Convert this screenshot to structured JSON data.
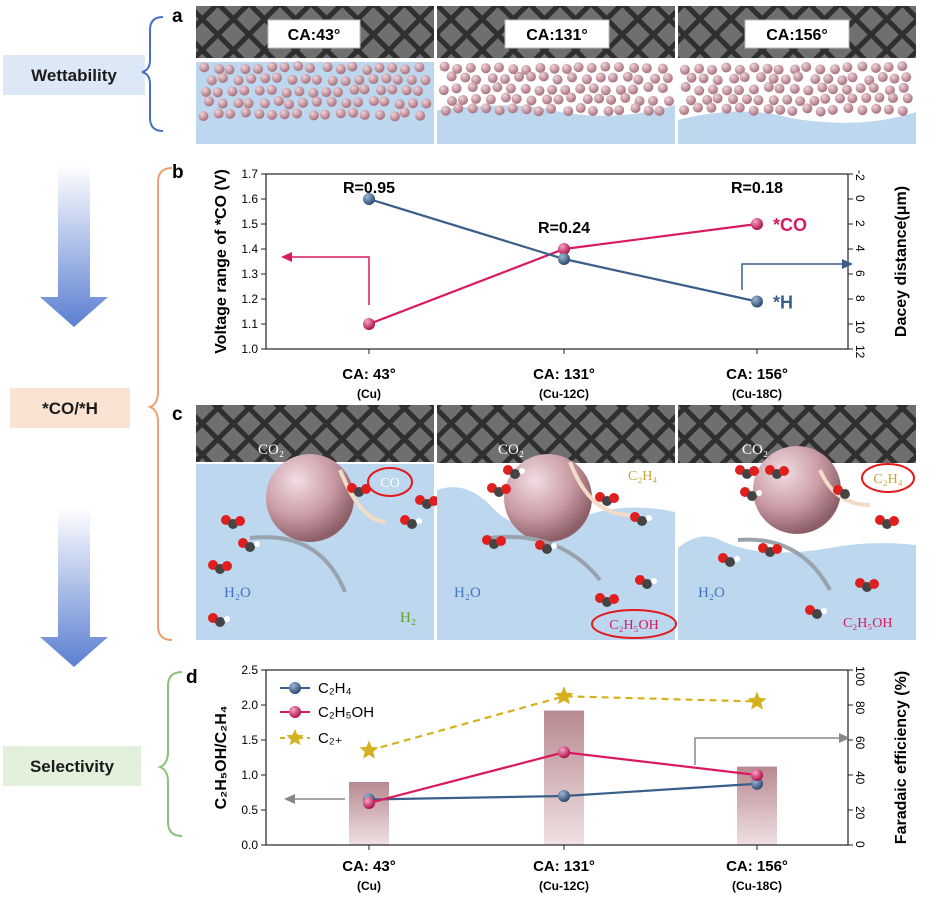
{
  "colors": {
    "wettability_bg": "#dce8f6",
    "co_bg": "#fbe3d4",
    "selectivity_bg": "#e3f0dc",
    "blue_series": "#3b5f8a",
    "red_series": "#d81b60",
    "gold": "#d4b21f",
    "water": "#bcd7ee",
    "particle": "#c99aa4",
    "bar": "#c7a1a6"
  },
  "left_column": {
    "wettability": "Wettability",
    "co_h": "*CO/*H",
    "selectivity": "Selectivity"
  },
  "panel_letters": {
    "a": "a",
    "b": "b",
    "c": "c",
    "d": "d"
  },
  "panel_a": {
    "cells": [
      {
        "label": "CA:43°"
      },
      {
        "label": "CA:131°"
      },
      {
        "label": "CA:156°"
      }
    ]
  },
  "panel_c": {
    "cells": [
      {
        "co2": "CO₂",
        "product_top": "CO",
        "water_label": "H₂O",
        "product_bottom": "H₂"
      },
      {
        "co2": "CO₂",
        "product_top": "C₂H₄",
        "water_label": "H₂O",
        "product_bottom": "C₂H₅OH"
      },
      {
        "co2": "CO₂",
        "product_top": "C₂H₄",
        "water_label": "H₂O",
        "product_bottom": "C₂H₅OH"
      }
    ]
  },
  "chart_data": [
    {
      "type": "line",
      "panel": "b",
      "categories": [
        "CA: 43°",
        "CA: 131°",
        "CA: 156°"
      ],
      "category_sublabels": [
        "(Cu)",
        "(Cu-12C)",
        "(Cu-18C)"
      ],
      "ylabel": "Voltage range of *CO (V)",
      "y2label": "Dacey distance(μm)",
      "ylim": [
        1.0,
        1.7
      ],
      "y_ticks": [
        "1.0",
        "1.1",
        "1.2",
        "1.3",
        "1.4",
        "1.5",
        "1.6",
        "1.7"
      ],
      "y2lim": [
        -2,
        12
      ],
      "y2_ticks": [
        "-2",
        "0",
        "2",
        "4",
        "6",
        "8",
        "10",
        "12"
      ],
      "y2_inverted": true,
      "series": [
        {
          "name": "*CO",
          "axis": "left",
          "color": "#d81b60",
          "values": [
            1.1,
            1.4,
            1.5
          ]
        },
        {
          "name": "*H",
          "axis": "right",
          "color": "#3b5f8a",
          "values": [
            0,
            4.8,
            8.2
          ]
        }
      ],
      "annotations": [
        "R=0.95",
        "R=0.24",
        "R=0.18"
      ],
      "grid": false
    },
    {
      "type": "bar+line",
      "panel": "d",
      "categories": [
        "CA: 43°",
        "CA: 131°",
        "CA: 156°"
      ],
      "category_sublabels": [
        "(Cu)",
        "(Cu-12C)",
        "(Cu-18C)"
      ],
      "ylabel": "C₂H₅OH/C₂H₄",
      "y2label": "Faradaic efficiency (%)",
      "ylim": [
        0,
        2.5
      ],
      "y_ticks": [
        "0.0",
        "0.5",
        "1.0",
        "1.5",
        "2.0",
        "2.5"
      ],
      "y2lim": [
        0,
        100
      ],
      "y2_ticks": [
        "0",
        "20",
        "40",
        "60",
        "80",
        "100"
      ],
      "bars": {
        "axis": "left",
        "values": [
          0.9,
          1.92,
          1.12
        ]
      },
      "series": [
        {
          "name": "C₂H₄",
          "axis": "right",
          "color": "#3b5f8a",
          "marker": "circle",
          "values": [
            26,
            28,
            35
          ]
        },
        {
          "name": "C₂H₅OH",
          "axis": "right",
          "color": "#d81b60",
          "marker": "circle",
          "values": [
            24,
            53,
            40
          ]
        },
        {
          "name": "C₂₊",
          "axis": "right",
          "color": "#d4b21f",
          "marker": "star",
          "dashed": true,
          "values": [
            54,
            85,
            82
          ]
        }
      ],
      "legend_position": "top-left",
      "grid": false
    }
  ]
}
